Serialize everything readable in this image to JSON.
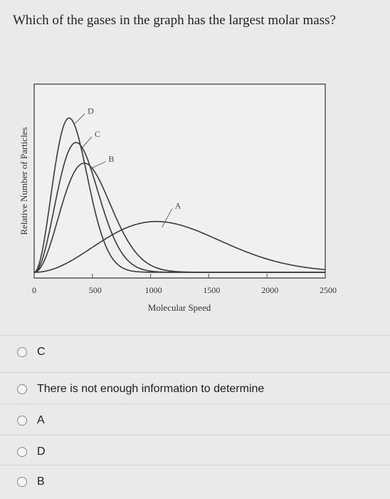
{
  "question": "Which of the gases in the graph has the largest molar mass?",
  "chart_data": {
    "type": "line",
    "xlabel": "Molecular Speed",
    "ylabel": "Relative Number of Particles",
    "xlim": [
      0,
      2500
    ],
    "xticks": [
      0,
      500,
      1000,
      1500,
      2000,
      2500
    ],
    "y_ticks_shown": false,
    "grid": false,
    "legend": "inline curve labels",
    "series": [
      {
        "name": "D",
        "peak_speed": 300,
        "peak_height": 0.82
      },
      {
        "name": "C",
        "peak_speed": 360,
        "peak_height": 0.69
      },
      {
        "name": "B",
        "peak_speed": 430,
        "peak_height": 0.58
      },
      {
        "name": "A",
        "peak_speed": 1050,
        "peak_height": 0.27
      }
    ]
  },
  "options": [
    {
      "label": "C"
    },
    {
      "label": "There is not enough information to determine"
    },
    {
      "label": "A"
    },
    {
      "label": "D"
    },
    {
      "label": "B"
    }
  ]
}
